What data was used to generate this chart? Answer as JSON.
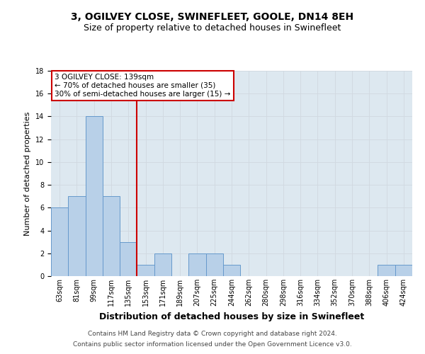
{
  "title": "3, OGILVEY CLOSE, SWINEFLEET, GOOLE, DN14 8EH",
  "subtitle": "Size of property relative to detached houses in Swinefleet",
  "xlabel": "Distribution of detached houses by size in Swinefleet",
  "ylabel": "Number of detached properties",
  "categories": [
    "63sqm",
    "81sqm",
    "99sqm",
    "117sqm",
    "135sqm",
    "153sqm",
    "171sqm",
    "189sqm",
    "207sqm",
    "225sqm",
    "244sqm",
    "262sqm",
    "280sqm",
    "298sqm",
    "316sqm",
    "334sqm",
    "352sqm",
    "370sqm",
    "388sqm",
    "406sqm",
    "424sqm"
  ],
  "values": [
    6,
    7,
    14,
    7,
    3,
    1,
    2,
    0,
    2,
    2,
    1,
    0,
    0,
    0,
    0,
    0,
    0,
    0,
    0,
    1,
    1
  ],
  "bar_color": "#b8d0e8",
  "bar_edge_color": "#6699cc",
  "grid_color": "#d0d8e0",
  "vline_x": 4.5,
  "vline_color": "#cc0000",
  "annotation_text": "3 OGILVEY CLOSE: 139sqm\n← 70% of detached houses are smaller (35)\n30% of semi-detached houses are larger (15) →",
  "annotation_box_color": "#cc0000",
  "ylim": [
    0,
    18
  ],
  "yticks": [
    0,
    2,
    4,
    6,
    8,
    10,
    12,
    14,
    16,
    18
  ],
  "footnote1": "Contains HM Land Registry data © Crown copyright and database right 2024.",
  "footnote2": "Contains public sector information licensed under the Open Government Licence v3.0.",
  "bg_color": "#dde8f0",
  "fig_bg_color": "#ffffff",
  "title_fontsize": 10,
  "subtitle_fontsize": 9,
  "xlabel_fontsize": 9,
  "ylabel_fontsize": 8,
  "tick_fontsize": 7,
  "footnote_fontsize": 6.5,
  "annotation_fontsize": 7.5
}
